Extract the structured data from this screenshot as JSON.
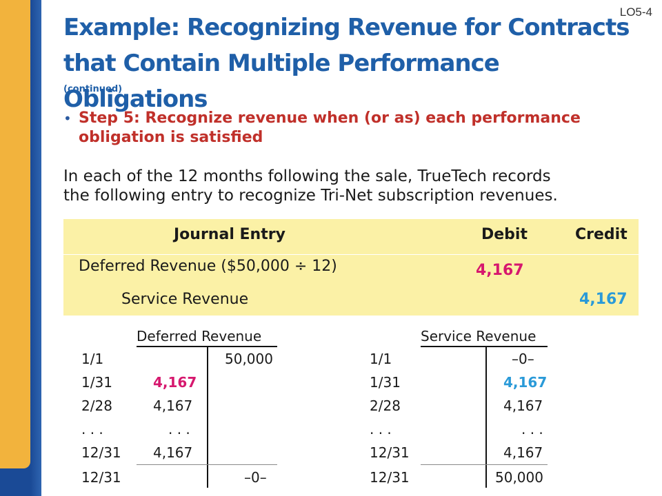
{
  "header": {
    "lo_tag": "LO5-4",
    "title_line1": "Example: Recognizing Revenue for Contracts",
    "title_line2": "that Contain Multiple Performance Obligations",
    "continued": "(continued)"
  },
  "bullet": {
    "line1": "Step 5: Recognize revenue when (or as) each performance",
    "line2": "obligation is satisfied"
  },
  "paragraph": {
    "line1": "In each of the 12 months following the sale, TrueTech records",
    "line2": "the following entry to recognize Tri-Net subscription revenues."
  },
  "journal": {
    "headers": {
      "entry": "Journal Entry",
      "debit": "Debit",
      "credit": "Credit"
    },
    "rows": [
      {
        "account": "Deferred Revenue ($50,000 ÷ 12)",
        "debit": "4,167",
        "credit": ""
      },
      {
        "account": "Service Revenue",
        "debit": "",
        "credit": "4,167"
      }
    ]
  },
  "t_accounts": [
    {
      "title": "Deferred Revenue",
      "rows": [
        {
          "date": "1/1",
          "debit": "",
          "credit": "50,000"
        },
        {
          "date": "1/31",
          "debit": "4,167",
          "credit": ""
        },
        {
          "date": "2/28",
          "debit": "4,167",
          "credit": ""
        },
        {
          "date": ". . .",
          "debit": ". . .",
          "credit": ""
        },
        {
          "date": "12/31",
          "debit": "4,167",
          "credit": ""
        },
        {
          "date": "12/31",
          "debit": "",
          "credit": "–0–"
        }
      ]
    },
    {
      "title": "Service Revenue",
      "rows": [
        {
          "date": "1/1",
          "debit": "",
          "credit": "–0–"
        },
        {
          "date": "1/31",
          "debit": "",
          "credit": "4,167"
        },
        {
          "date": "2/28",
          "debit": "",
          "credit": "4,167"
        },
        {
          "date": ". . .",
          "debit": "",
          "credit": ". . ."
        },
        {
          "date": "12/31",
          "debit": "",
          "credit": "4,167"
        },
        {
          "date": "12/31",
          "debit": "",
          "credit": "50,000"
        }
      ]
    }
  ],
  "colors": {
    "title_blue": "#1f5fa8",
    "step_red": "#c0302a",
    "debit_magenta": "#d6186e",
    "credit_blue": "#2a9ad8",
    "journal_bg": "#fbf1a6",
    "sidebar_gold": "#f2b33d",
    "sidebar_blue": "#1a4a96"
  }
}
